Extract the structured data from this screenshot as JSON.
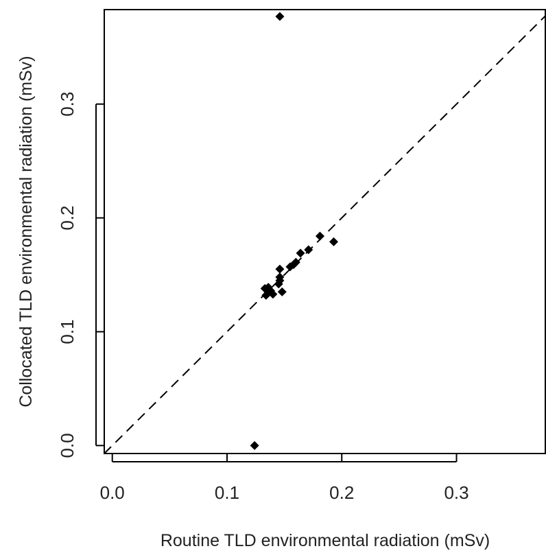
{
  "chart_data": {
    "type": "scatter",
    "title": "",
    "xlabel": "Routine TLD environmental radiation (mSv)",
    "ylabel": "Collocated TLD environmental radiation (mSv)",
    "xlim": [
      -0.007,
      0.378
    ],
    "ylim": [
      -0.007,
      0.383
    ],
    "xticks": [
      0.0,
      0.1,
      0.2,
      0.3
    ],
    "xtick_labels": [
      "0.0",
      "0.1",
      "0.2",
      "0.3"
    ],
    "yticks": [
      0.0,
      0.1,
      0.2,
      0.3
    ],
    "ytick_labels": [
      "0.0",
      "0.1",
      "0.2",
      "0.3"
    ],
    "grid": false,
    "marker": "filled-diamond",
    "point_color": "#000000",
    "reference_line": {
      "type": "identity",
      "style": "dashed",
      "color": "#000000"
    },
    "points": [
      {
        "x": 0.146,
        "y": 0.377
      },
      {
        "x": 0.124,
        "y": 0.0
      },
      {
        "x": 0.193,
        "y": 0.179
      },
      {
        "x": 0.181,
        "y": 0.184
      },
      {
        "x": 0.171,
        "y": 0.172
      },
      {
        "x": 0.164,
        "y": 0.169
      },
      {
        "x": 0.16,
        "y": 0.161
      },
      {
        "x": 0.158,
        "y": 0.159
      },
      {
        "x": 0.155,
        "y": 0.157
      },
      {
        "x": 0.146,
        "y": 0.155
      },
      {
        "x": 0.146,
        "y": 0.148
      },
      {
        "x": 0.146,
        "y": 0.145
      },
      {
        "x": 0.145,
        "y": 0.142
      },
      {
        "x": 0.148,
        "y": 0.135
      },
      {
        "x": 0.14,
        "y": 0.133
      },
      {
        "x": 0.138,
        "y": 0.136
      },
      {
        "x": 0.136,
        "y": 0.139
      },
      {
        "x": 0.133,
        "y": 0.138
      },
      {
        "x": 0.134,
        "y": 0.132
      },
      {
        "x": 0.136,
        "y": 0.134
      }
    ]
  }
}
